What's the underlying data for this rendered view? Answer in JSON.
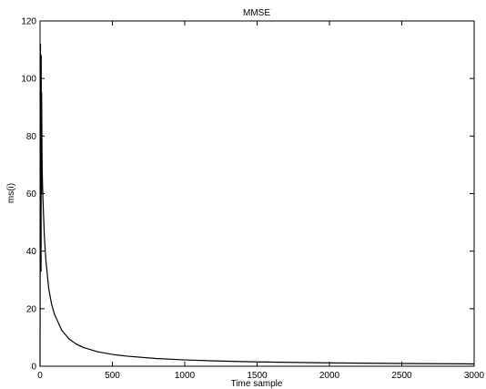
{
  "chart_data": {
    "type": "line",
    "title": "MMSE",
    "xlabel": "Time sample",
    "ylabel": "ms(i)",
    "xlim": [
      0,
      3000
    ],
    "ylim": [
      0,
      120
    ],
    "xticks": [
      0,
      500,
      1000,
      1500,
      2000,
      2500,
      3000
    ],
    "yticks": [
      0,
      20,
      40,
      60,
      80,
      100,
      120
    ],
    "grid": false,
    "legend": "none",
    "line_color": "#000000",
    "series": [
      {
        "x": [
          0,
          3,
          5,
          7,
          8,
          10,
          11,
          13,
          15,
          20,
          30,
          40,
          60,
          80,
          100,
          150,
          200,
          250,
          300,
          400,
          500,
          600,
          800,
          1000,
          1200,
          1500,
          2000,
          2500,
          3000
        ],
        "y": [
          0,
          112,
          75,
          33,
          108,
          60,
          95,
          78,
          68,
          58,
          45,
          37,
          27,
          21.5,
          18,
          12.5,
          9.5,
          7.7,
          6.5,
          5.0,
          4.1,
          3.5,
          2.7,
          2.2,
          1.85,
          1.5,
          1.15,
          0.95,
          0.8
        ]
      }
    ]
  }
}
